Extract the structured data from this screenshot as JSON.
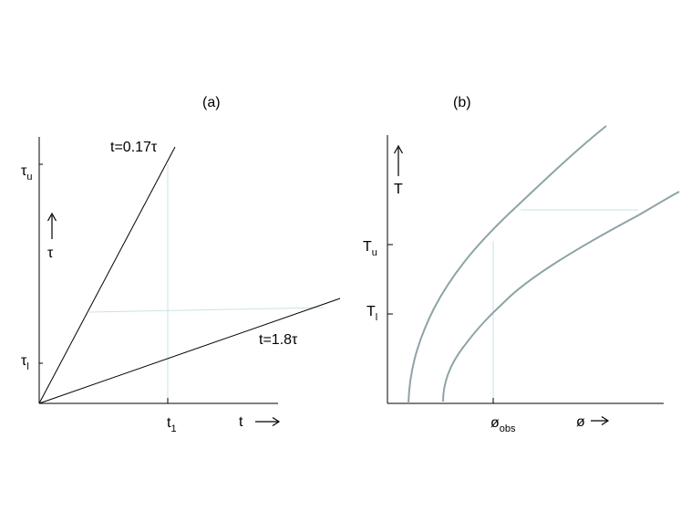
{
  "panel_a": {
    "label": "(a)",
    "y_tick_upper": {
      "main": "τ",
      "sub": "u"
    },
    "y_tick_lower": {
      "main": "τ",
      "sub": "l"
    },
    "y_axis": {
      "label": "τ",
      "arrow": "↑"
    },
    "x_tick": {
      "main": "t",
      "sub": "1"
    },
    "x_axis": {
      "label": "t",
      "arrow": "⟶"
    },
    "steep_line_label": "t=0.17τ",
    "shallow_line_label": "t=1.8τ"
  },
  "panel_b": {
    "label": "(b)",
    "y_axis": {
      "label": "T",
      "arrow": "↑"
    },
    "y_tick_upper": {
      "main": "T",
      "sub": "u"
    },
    "y_tick_lower": {
      "main": "T",
      "sub": "l"
    },
    "x_tick": {
      "main": "ø",
      "sub": "obs"
    },
    "x_axis": {
      "label": "ø",
      "arrow": "→"
    }
  },
  "colors": {
    "axis": "#000000",
    "curve": "#8fa3a7",
    "guide": "#c8e3e6"
  }
}
